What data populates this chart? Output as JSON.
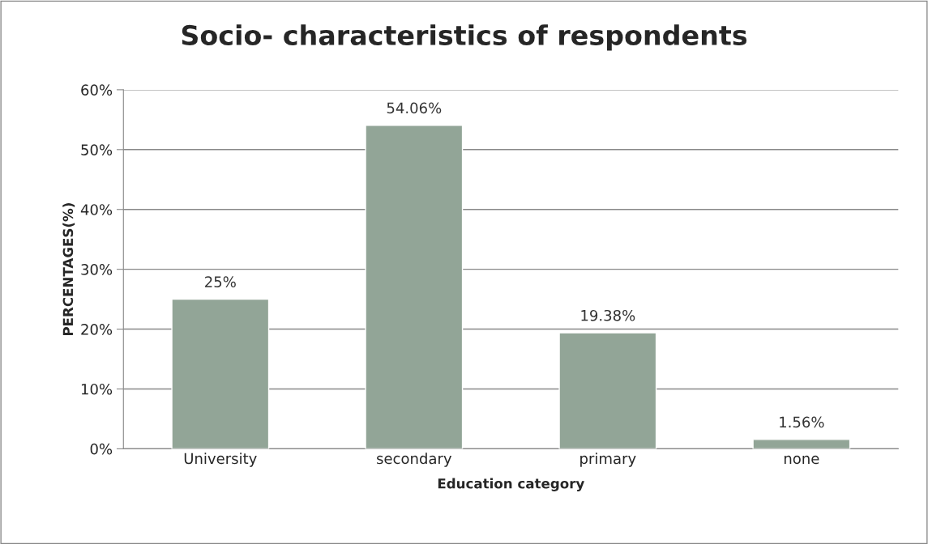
{
  "chart_data": {
    "type": "bar",
    "title": "Socio- characteristics of respondents",
    "xlabel": "Education category",
    "ylabel": "PERCENTAGES(%)",
    "categories": [
      "University",
      "secondary",
      "primary",
      "none"
    ],
    "values": [
      25,
      54.06,
      19.38,
      1.56
    ],
    "color": "#92a597",
    "value_labels": [
      "25%",
      "54.06%",
      "19.38%",
      "1.56%"
    ],
    "ylim": [
      0,
      60
    ],
    "yticks": [
      {
        "value": 0,
        "label": "0%"
      },
      {
        "value": 10,
        "label": "10%"
      },
      {
        "value": 20,
        "label": "20%"
      },
      {
        "value": 30,
        "label": "30%"
      },
      {
        "value": 40,
        "label": "40%"
      },
      {
        "value": 50,
        "label": "50%"
      },
      {
        "value": 60,
        "label": "60%"
      }
    ],
    "grid": "y",
    "legend": false
  }
}
